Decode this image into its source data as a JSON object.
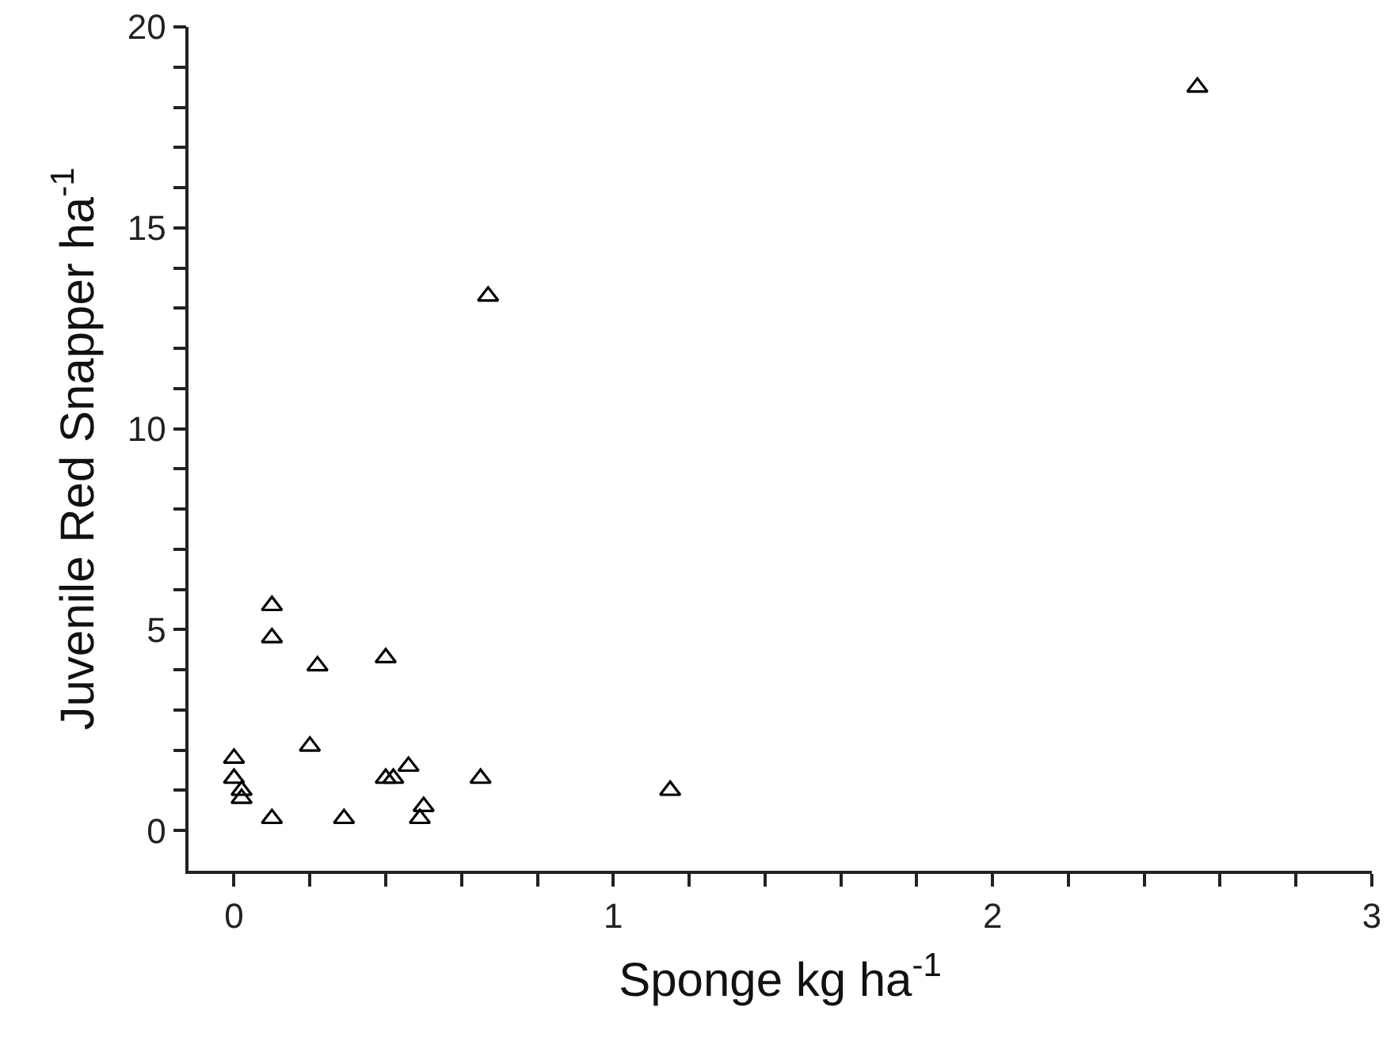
{
  "chart_data": {
    "type": "scatter",
    "xlabel": "Sponge kg ha$^{-1}$",
    "ylabel": "Juvenile Red Snapper ha$^{-1}$",
    "x": [
      2.54,
      0.67,
      0.1,
      0.1,
      0.22,
      0.4,
      0.2,
      0.0,
      0.0,
      0.02,
      0.02,
      0.1,
      0.29,
      0.4,
      0.42,
      0.46,
      0.65,
      0.5,
      0.49,
      1.15
    ],
    "values": [
      18.5,
      13.3,
      5.6,
      4.8,
      4.1,
      4.3,
      2.1,
      1.8,
      1.3,
      1.0,
      0.8,
      0.3,
      0.3,
      1.3,
      1.3,
      1.6,
      1.3,
      0.6,
      0.3,
      1.0
    ],
    "color": "#000000",
    "marker": "triangle",
    "xlim": [
      -0.12,
      3
    ],
    "ylim": [
      -1,
      20
    ],
    "xticks": [
      0,
      {
        "value": 0.2,
        "label": null
      },
      {
        "value": 0.4,
        "label": null
      },
      {
        "value": 0.6,
        "label": null
      },
      {
        "value": 0.8,
        "label": null
      },
      1,
      {
        "value": 1.2,
        "label": null
      },
      {
        "value": 1.4,
        "label": null
      },
      {
        "value": 1.6,
        "label": null
      },
      {
        "value": 1.8,
        "label": null
      },
      2,
      {
        "value": 2.2,
        "label": null
      },
      {
        "value": 2.4,
        "label": null
      },
      {
        "value": 2.6,
        "label": null
      },
      {
        "value": 2.8,
        "label": null
      },
      3
    ],
    "yticks": [
      0,
      {
        "value": 1,
        "label": null
      },
      {
        "value": 2,
        "label": null
      },
      {
        "value": 3,
        "label": null
      },
      {
        "value": 4,
        "label": null
      },
      5,
      {
        "value": 6,
        "label": null
      },
      {
        "value": 7,
        "label": null
      },
      {
        "value": 8,
        "label": null
      },
      {
        "value": 9,
        "label": null
      },
      10,
      {
        "value": 11,
        "label": null
      },
      {
        "value": 12,
        "label": null
      },
      {
        "value": 13,
        "label": null
      },
      {
        "value": 14,
        "label": null
      },
      15,
      {
        "value": 16,
        "label": null
      },
      {
        "value": 17,
        "label": null
      },
      {
        "value": 18,
        "label": null
      },
      {
        "value": 19,
        "label": null
      },
      20
    ],
    "grid": false
  }
}
